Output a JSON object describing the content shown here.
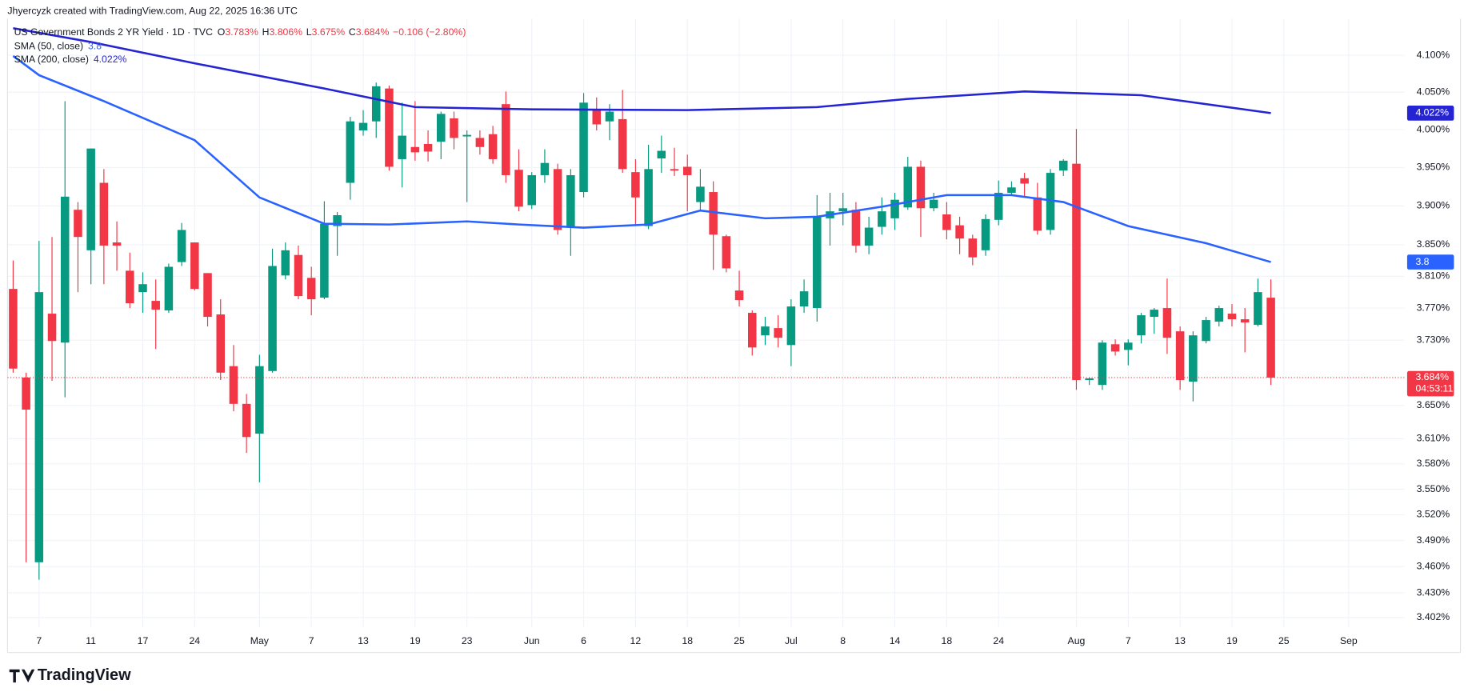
{
  "credit": "Jhyercyzk created with TradingView.com, Aug 22, 2025 16:36 UTC",
  "brand": "TradingView",
  "chart_data": {
    "type": "candlestick",
    "title": "US Government Bonds 2 YR Yield · 1D · TVC",
    "ohlc": [
      {
        "key": "O",
        "value": "3.783%"
      },
      {
        "key": "H",
        "value": "3.806%"
      },
      {
        "key": "L",
        "value": "3.675%"
      },
      {
        "key": "C",
        "value": "3.684%"
      }
    ],
    "change": "−0.106 (−2.80%)",
    "up_color": "#089981",
    "down_color": "#f23645",
    "log_scale": true,
    "grid": true,
    "last_price_label": "3.684%",
    "countdown": "04:53:11",
    "categories": [
      "Apr 3",
      "Apr 4",
      "Apr 7",
      "Apr 8",
      "Apr 9",
      "Apr 10",
      "Apr 11",
      "Apr 14",
      "Apr 15",
      "Apr 16",
      "Apr 17",
      "Apr 21",
      "Apr 22",
      "Apr 23",
      "Apr 24",
      "Apr 25",
      "Apr 28",
      "Apr 29",
      "Apr 30",
      "May 1",
      "May 2",
      "May 5",
      "May 6",
      "May 7",
      "May 8",
      "May 9",
      "May 12",
      "May 13",
      "May 14",
      "May 15",
      "May 16",
      "May 19",
      "May 20",
      "May 21",
      "May 22",
      "May 23",
      "May 27",
      "May 28",
      "May 29",
      "May 30",
      "Jun 2",
      "Jun 3",
      "Jun 4",
      "Jun 5",
      "Jun 6",
      "Jun 9",
      "Jun 10",
      "Jun 11",
      "Jun 12",
      "Jun 13",
      "Jun 16",
      "Jun 17",
      "Jun 18",
      "Jun 20",
      "Jun 23",
      "Jun 24",
      "Jun 25",
      "Jun 26",
      "Jun 27",
      "Jun 30",
      "Jul 1",
      "Jul 2",
      "Jul 3",
      "Jul 7",
      "Jul 8",
      "Jul 9",
      "Jul 10",
      "Jul 11",
      "Jul 14",
      "Jul 15",
      "Jul 16",
      "Jul 17",
      "Jul 18",
      "Jul 21",
      "Jul 22",
      "Jul 23",
      "Jul 24",
      "Jul 25",
      "Jul 28",
      "Jul 29",
      "Jul 30",
      "Jul 31",
      "Aug 1",
      "Aug 4",
      "Aug 5",
      "Aug 6",
      "Aug 7",
      "Aug 8",
      "Aug 11",
      "Aug 12",
      "Aug 13",
      "Aug 14",
      "Aug 15",
      "Aug 18",
      "Aug 19",
      "Aug 20",
      "Aug 21",
      "Aug 22",
      "Aug 25",
      "Aug 26",
      "Aug 27",
      "Aug 28",
      "Aug 29",
      "Sep 1",
      "Sep 2",
      "Sep 3",
      "Sep 4",
      "Sep 5"
    ],
    "open": [
      3.794,
      3.684,
      3.465,
      3.763,
      3.727,
      3.895,
      3.843,
      3.93,
      3.853,
      3.817,
      3.79,
      3.779,
      3.767,
      3.828,
      3.853,
      3.814,
      3.762,
      3.698,
      3.652,
      3.616,
      3.692,
      3.811,
      3.837,
      3.808,
      3.783,
      3.874,
      3.93,
      3.999,
      4.011,
      4.055,
      3.961,
      3.977,
      3.981,
      3.984,
      4.015,
      3.991,
      3.989,
      3.994,
      4.034,
      3.947,
      3.901,
      3.94,
      3.948,
      3.873,
      3.918,
      4.026,
      4.011,
      4.014,
      3.944,
      3.874,
      3.962,
      3.948,
      3.951,
      3.905,
      3.918,
      3.861,
      3.792,
      3.764,
      3.736,
      3.745,
      3.724,
      3.772,
      3.77,
      3.884,
      3.893,
      3.895,
      3.849,
      3.873,
      3.884,
      3.898,
      3.951,
      3.897,
      3.889,
      3.875,
      3.858,
      3.843,
      3.882,
      3.917,
      3.936,
      3.911,
      3.869,
      3.946,
      3.955,
      3.681,
      3.675,
      3.725,
      3.718,
      3.736,
      3.759,
      3.77,
      3.741,
      3.679,
      3.729,
      3.753,
      3.763,
      3.756,
      3.749,
      3.783,
      null,
      null,
      null,
      null,
      null,
      null,
      null,
      null,
      null,
      null
    ],
    "high": [
      3.83,
      3.69,
      3.855,
      3.86,
      4.038,
      3.905,
      3.975,
      3.948,
      3.88,
      3.84,
      3.815,
      3.806,
      3.826,
      3.878,
      3.853,
      3.814,
      3.781,
      3.724,
      3.664,
      3.712,
      3.845,
      3.853,
      3.849,
      3.822,
      3.906,
      3.892,
      4.017,
      4.026,
      4.063,
      4.059,
      4.036,
      4.038,
      3.999,
      4.024,
      4.024,
      3.999,
      3.999,
      4.005,
      4.051,
      3.974,
      3.944,
      3.974,
      3.955,
      3.948,
      4.049,
      4.043,
      4.034,
      4.053,
      3.961,
      3.98,
      3.992,
      3.976,
      3.967,
      3.948,
      3.932,
      3.863,
      3.817,
      3.767,
      3.759,
      3.761,
      3.781,
      3.806,
      3.914,
      3.917,
      3.917,
      3.905,
      3.886,
      3.911,
      3.917,
      3.964,
      3.959,
      3.917,
      3.905,
      3.886,
      3.863,
      3.889,
      3.933,
      3.932,
      3.943,
      3.93,
      3.948,
      3.961,
      4.001,
      3.684,
      3.73,
      3.731,
      3.731,
      3.764,
      3.77,
      3.807,
      3.747,
      3.741,
      3.759,
      3.773,
      3.775,
      3.77,
      3.807,
      3.806,
      null,
      null,
      null,
      null,
      null,
      null,
      null,
      null,
      null,
      null
    ],
    "low": [
      3.69,
      3.465,
      3.445,
      3.68,
      3.66,
      3.79,
      3.8,
      3.8,
      3.817,
      3.77,
      3.764,
      3.719,
      3.764,
      3.823,
      3.792,
      3.747,
      3.681,
      3.643,
      3.593,
      3.558,
      3.69,
      3.806,
      3.781,
      3.761,
      3.781,
      3.836,
      3.908,
      3.992,
      3.989,
      3.946,
      3.924,
      3.959,
      3.958,
      3.961,
      3.974,
      3.905,
      3.967,
      3.955,
      3.93,
      3.893,
      3.896,
      3.93,
      3.863,
      3.836,
      3.911,
      3.999,
      3.986,
      3.943,
      3.874,
      3.87,
      3.943,
      3.939,
      3.893,
      3.893,
      3.818,
      3.815,
      3.772,
      3.711,
      3.724,
      3.721,
      3.698,
      3.764,
      3.753,
      3.849,
      3.875,
      3.84,
      3.838,
      3.863,
      3.869,
      3.895,
      3.86,
      3.893,
      3.857,
      3.838,
      3.824,
      3.836,
      3.875,
      3.914,
      3.911,
      3.863,
      3.863,
      3.939,
      3.669,
      3.675,
      3.669,
      3.711,
      3.699,
      3.726,
      3.738,
      3.713,
      3.669,
      3.655,
      3.726,
      3.747,
      3.747,
      3.715,
      3.747,
      3.675,
      null,
      null,
      null,
      null,
      null,
      null,
      null,
      null,
      null,
      null
    ],
    "close": [
      3.695,
      3.645,
      3.79,
      3.729,
      3.912,
      3.86,
      3.975,
      3.849,
      3.849,
      3.776,
      3.8,
      3.768,
      3.822,
      3.869,
      3.794,
      3.759,
      3.69,
      3.652,
      3.612,
      3.698,
      3.823,
      3.843,
      3.785,
      3.781,
      3.877,
      3.888,
      4.011,
      4.009,
      4.058,
      3.951,
      3.992,
      3.97,
      3.971,
      4.021,
      3.989,
      3.993,
      3.977,
      3.961,
      3.94,
      3.899,
      3.94,
      3.956,
      3.869,
      3.94,
      4.036,
      4.007,
      4.024,
      3.948,
      3.911,
      3.948,
      3.972,
      3.946,
      3.94,
      3.925,
      3.863,
      3.82,
      3.78,
      3.721,
      3.747,
      3.733,
      3.772,
      3.791,
      3.886,
      3.893,
      3.897,
      3.849,
      3.872,
      3.893,
      3.908,
      3.951,
      3.897,
      3.908,
      3.869,
      3.858,
      3.834,
      3.883,
      3.917,
      3.924,
      3.929,
      3.868,
      3.943,
      3.959,
      3.681,
      3.683,
      3.727,
      3.716,
      3.727,
      3.761,
      3.768,
      3.733,
      3.681,
      3.736,
      3.755,
      3.77,
      3.756,
      3.752,
      3.79,
      3.684,
      null,
      null,
      null,
      null,
      null,
      null,
      null,
      null,
      null,
      null
    ],
    "series": [
      {
        "name": "SMA (50, close)",
        "color": "#2962ff",
        "x": [
          "Apr 3",
          "Apr 7",
          "Apr 14",
          "Apr 24",
          "May 1",
          "May 8",
          "May 15",
          "May 23",
          "May 30",
          "Jun 6",
          "Jun 13",
          "Jun 20",
          "Jun 27",
          "Jul 3",
          "Jul 11",
          "Jul 18",
          "Jul 25",
          "Jul 31",
          "Aug 7",
          "Aug 15",
          "Aug 22"
        ],
        "values": [
          4.099,
          4.073,
          4.038,
          3.986,
          3.911,
          3.877,
          3.876,
          3.88,
          3.876,
          3.872,
          3.876,
          3.894,
          3.884,
          3.886,
          3.899,
          3.914,
          3.914,
          3.905,
          3.874,
          3.852,
          3.828
        ],
        "value_label": "3.8"
      },
      {
        "name": "SMA (200, close)",
        "color": "#2424d4",
        "x": [
          "Apr 3",
          "Apr 11",
          "Apr 24",
          "May 8",
          "May 19",
          "Jun 2",
          "Jun 18",
          "Jul 3",
          "Jul 15",
          "Jul 28",
          "Aug 8",
          "Aug 22"
        ],
        "values": [
          4.137,
          4.118,
          4.089,
          4.055,
          4.03,
          4.027,
          4.026,
          4.03,
          4.041,
          4.051,
          4.046,
          4.022
        ],
        "value_label": "4.022%"
      }
    ],
    "ylim": [
      3.391,
      4.15
    ],
    "yticks": [
      {
        "value": 4.1,
        "label": "4.100%"
      },
      {
        "value": 4.05,
        "label": "4.050%"
      },
      {
        "value": 4,
        "label": "4.000%"
      },
      {
        "value": 3.95,
        "label": "3.950%"
      },
      {
        "value": 3.9,
        "label": "3.900%"
      },
      {
        "value": 3.85,
        "label": "3.850%"
      },
      {
        "value": 3.81,
        "label": "3.810%"
      },
      {
        "value": 3.77,
        "label": "3.770%"
      },
      {
        "value": 3.73,
        "label": "3.730%"
      },
      {
        "value": 3.65,
        "label": "3.650%"
      },
      {
        "value": 3.61,
        "label": "3.610%"
      },
      {
        "value": 3.58,
        "label": "3.580%"
      },
      {
        "value": 3.55,
        "label": "3.550%"
      },
      {
        "value": 3.52,
        "label": "3.520%"
      },
      {
        "value": 3.49,
        "label": "3.490%"
      },
      {
        "value": 3.46,
        "label": "3.460%"
      },
      {
        "value": 3.43,
        "label": "3.430%"
      },
      {
        "value": 3.402,
        "label": "3.402%"
      }
    ],
    "xticks": [
      {
        "value": "Apr 7",
        "label": "7"
      },
      {
        "value": "Apr 11",
        "label": "11"
      },
      {
        "value": "Apr 17",
        "label": "17"
      },
      {
        "value": "Apr 24",
        "label": "24"
      },
      {
        "value": "May 1",
        "label": "May"
      },
      {
        "value": "May 7",
        "label": "7"
      },
      {
        "value": "May 13",
        "label": "13"
      },
      {
        "value": "May 19",
        "label": "19"
      },
      {
        "value": "May 23",
        "label": "23"
      },
      {
        "value": "Jun 2",
        "label": "Jun"
      },
      {
        "value": "Jun 6",
        "label": "6"
      },
      {
        "value": "Jun 12",
        "label": "12"
      },
      {
        "value": "Jun 18",
        "label": "18"
      },
      {
        "value": "Jun 25",
        "label": "25"
      },
      {
        "value": "Jul 1",
        "label": "Jul"
      },
      {
        "value": "Jul 8",
        "label": "8"
      },
      {
        "value": "Jul 14",
        "label": "14"
      },
      {
        "value": "Jul 18",
        "label": "18"
      },
      {
        "value": "Jul 24",
        "label": "24"
      },
      {
        "value": "Aug 1",
        "label": "Aug"
      },
      {
        "value": "Aug 7",
        "label": "7"
      },
      {
        "value": "Aug 13",
        "label": "13"
      },
      {
        "value": "Aug 19",
        "label": "19"
      },
      {
        "value": "Aug 25",
        "label": "25"
      },
      {
        "value": "Sep 1",
        "label": "Sep"
      }
    ]
  }
}
